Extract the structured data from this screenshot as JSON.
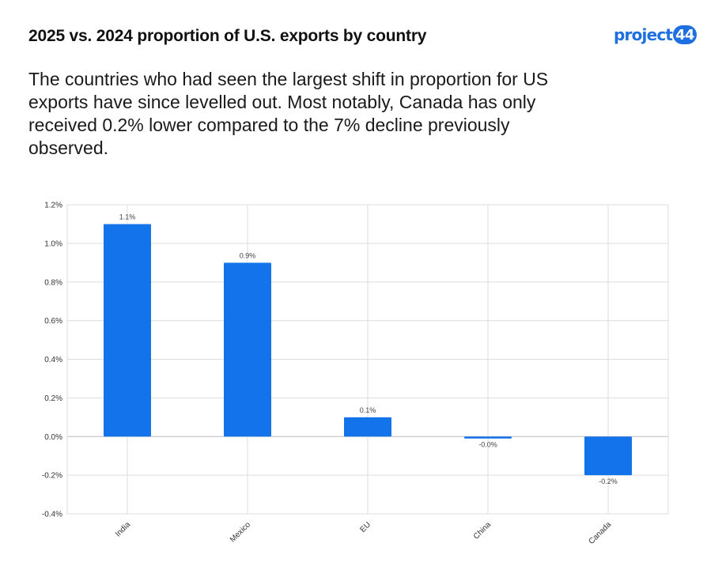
{
  "header": {
    "title": "2025 vs. 2024 proportion of U.S. exports by country",
    "subtitle": "The countries who had seen the largest shift in proportion for US exports have since levelled out. Most notably, Canada has only received 0.2% lower compared to the 7% decline previously observed.",
    "logo_text": "project",
    "logo_number": "44"
  },
  "chart_data": {
    "type": "bar",
    "title": "",
    "xlabel": "",
    "ylabel": "",
    "categories": [
      "India",
      "Mexico",
      "EU",
      "China",
      "Canada"
    ],
    "values": [
      1.1,
      0.9,
      0.1,
      -0.01,
      -0.2
    ],
    "data_labels": [
      "1.1%",
      "0.9%",
      "0.1%",
      "-0.0%",
      "-0.2%"
    ],
    "ylim": [
      -0.4,
      1.2
    ],
    "yticks": [
      -0.4,
      -0.2,
      0.0,
      0.2,
      0.4,
      0.6,
      0.8,
      1.0,
      1.2
    ],
    "ytick_labels": [
      "-0.4%",
      "-0.2%",
      "0.0%",
      "0.2%",
      "0.4%",
      "0.6%",
      "0.8%",
      "1.0%",
      "1.2%"
    ],
    "bar_color": "#1273eb",
    "grid": true,
    "legend": "none"
  }
}
